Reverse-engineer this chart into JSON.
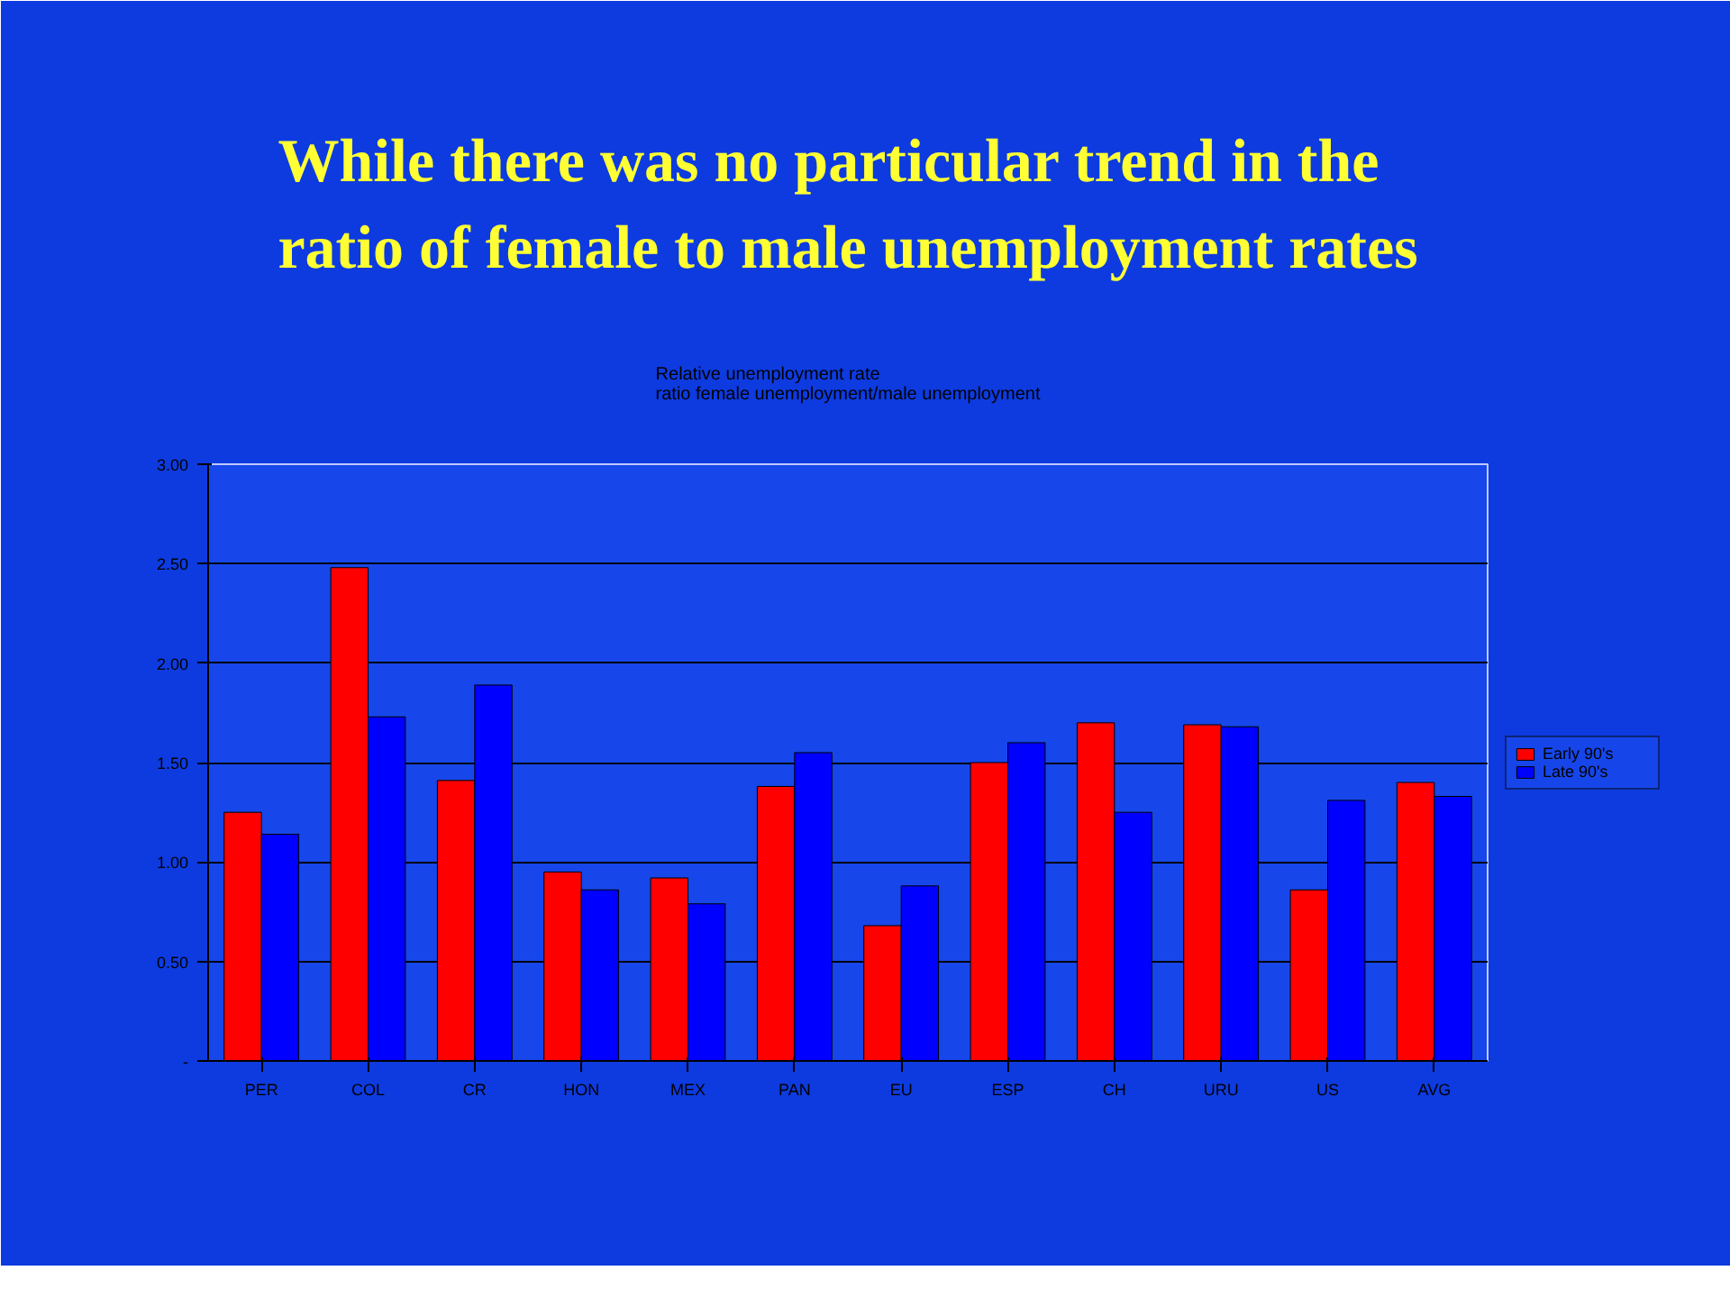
{
  "chart_data": {
    "type": "bar",
    "title": "While there was no particular trend in the\nratio of female to male unemployment rates",
    "subtitle": "Relative unemployment rate\nratio female unemployment/male unemployment",
    "categories": [
      "PER",
      "COL",
      "CR",
      "HON",
      "MEX",
      "PAN",
      "EU",
      "ESP",
      "CH",
      "URU",
      "US",
      "AVG"
    ],
    "series": [
      {
        "name": "Early 90's",
        "color": "#ff0000",
        "values": [
          1.25,
          2.48,
          1.41,
          0.95,
          0.92,
          1.38,
          0.68,
          1.5,
          1.7,
          1.69,
          0.86,
          1.4
        ]
      },
      {
        "name": "Late 90's",
        "color": "#0000ff",
        "values": [
          1.14,
          1.73,
          1.89,
          0.86,
          0.79,
          1.55,
          0.88,
          1.6,
          1.25,
          1.68,
          1.31,
          1.33
        ]
      }
    ],
    "ylim": [
      0,
      3
    ],
    "yticks": [
      {
        "value": 0,
        "label": "-"
      },
      {
        "value": 0.5,
        "label": "0.50"
      },
      {
        "value": 1,
        "label": "1.00"
      },
      {
        "value": 1.5,
        "label": "1.50"
      },
      {
        "value": 2,
        "label": "2.00"
      },
      {
        "value": 2.5,
        "label": "2.50"
      },
      {
        "value": 3,
        "label": "3.00"
      }
    ],
    "grid": "y",
    "legend": "right"
  }
}
